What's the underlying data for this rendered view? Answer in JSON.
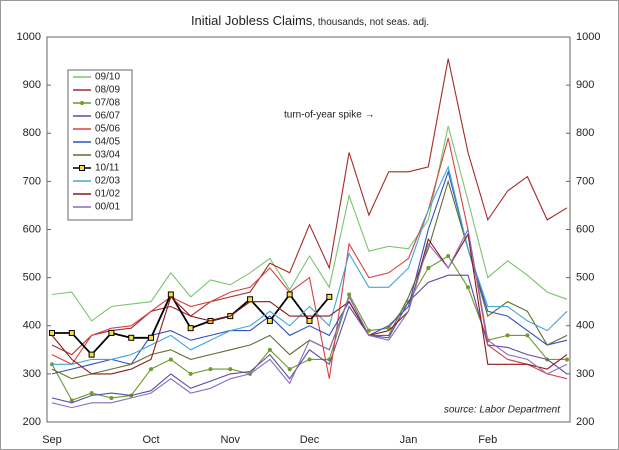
{
  "chart_data": {
    "type": "line",
    "title": "Initial Jobless Claims",
    "subtitle": ", thousands, not seas. adj.",
    "annotation": "turn-of-year spike →",
    "source": "source: Labor Department",
    "categories": [
      "Sep",
      null,
      null,
      null,
      null,
      "Oct",
      null,
      null,
      null,
      "Nov",
      null,
      null,
      null,
      "Dec",
      null,
      null,
      null,
      null,
      "Jan",
      null,
      null,
      null,
      "Feb",
      null,
      null,
      null,
      null
    ],
    "ylim": [
      200,
      1000
    ],
    "yticks": [
      200,
      300,
      400,
      500,
      600,
      700,
      800,
      900,
      1000
    ],
    "legend": "top-left",
    "series": [
      {
        "name": "09/10",
        "color": "#7cc46e",
        "values": [
          465,
          470,
          410,
          440,
          445,
          450,
          510,
          460,
          495,
          485,
          510,
          540,
          475,
          545,
          480,
          670,
          555,
          565,
          560,
          620,
          815,
          660,
          500,
          535,
          505,
          470,
          455
        ]
      },
      {
        "name": "08/09",
        "color": "#a52a2a",
        "values": [
          360,
          340,
          380,
          390,
          395,
          430,
          440,
          420,
          450,
          460,
          470,
          530,
          510,
          610,
          520,
          760,
          630,
          720,
          720,
          730,
          955,
          760,
          620,
          680,
          710,
          620,
          645
        ]
      },
      {
        "name": "07/08",
        "color": "#6e9a2e",
        "marker": "circle",
        "values": [
          320,
          245,
          260,
          250,
          255,
          310,
          330,
          300,
          310,
          310,
          300,
          350,
          310,
          330,
          330,
          465,
          390,
          395,
          450,
          520,
          545,
          480,
          370,
          380,
          380,
          330,
          330
        ]
      },
      {
        "name": "06/07",
        "color": "#5a4aa8",
        "values": [
          250,
          240,
          255,
          260,
          255,
          265,
          300,
          270,
          285,
          300,
          305,
          340,
          290,
          350,
          320,
          440,
          380,
          375,
          450,
          490,
          505,
          505,
          360,
          355,
          340,
          330,
          300
        ]
      },
      {
        "name": "05/06",
        "color": "#d84040",
        "values": [
          340,
          320,
          380,
          395,
          400,
          430,
          460,
          440,
          450,
          470,
          480,
          520,
          470,
          500,
          290,
          570,
          500,
          510,
          540,
          640,
          790,
          600,
          360,
          330,
          320,
          300,
          290
        ]
      },
      {
        "name": "04/05",
        "color": "#3050c0",
        "values": [
          300,
          310,
          320,
          330,
          320,
          380,
          390,
          370,
          380,
          390,
          390,
          420,
          380,
          400,
          380,
          450,
          380,
          400,
          440,
          600,
          720,
          560,
          430,
          420,
          390,
          360,
          370
        ]
      },
      {
        "name": "03/04",
        "color": "#5f6e2e",
        "values": [
          310,
          290,
          300,
          310,
          320,
          340,
          350,
          330,
          340,
          350,
          360,
          380,
          340,
          370,
          350,
          460,
          380,
          380,
          460,
          560,
          700,
          560,
          420,
          450,
          430,
          360,
          380
        ]
      },
      {
        "name": "10/11",
        "color": "#000000",
        "marker": "square",
        "values": [
          385,
          385,
          340,
          385,
          375,
          375,
          465,
          395,
          410,
          420,
          455,
          410,
          465,
          410,
          460,
          null,
          null,
          null,
          null,
          null,
          null,
          null,
          null,
          null,
          null,
          null,
          null
        ]
      },
      {
        "name": "02/03",
        "color": "#40a8d8",
        "values": [
          320,
          320,
          330,
          330,
          340,
          360,
          380,
          350,
          370,
          390,
          400,
          430,
          400,
          440,
          400,
          550,
          480,
          480,
          520,
          640,
          730,
          560,
          440,
          440,
          410,
          390,
          430
        ]
      },
      {
        "name": "01/02",
        "color": "#8b1a1a",
        "values": [
          380,
          330,
          300,
          300,
          310,
          330,
          460,
          420,
          410,
          420,
          450,
          450,
          420,
          420,
          420,
          450,
          380,
          390,
          430,
          580,
          520,
          590,
          320,
          320,
          320,
          310,
          340
        ]
      },
      {
        "name": "00/01",
        "color": "#8a6cc0",
        "values": [
          240,
          230,
          240,
          240,
          250,
          260,
          290,
          260,
          270,
          290,
          300,
          330,
          280,
          370,
          350,
          460,
          380,
          370,
          430,
          570,
          520,
          600,
          370,
          340,
          330,
          300,
          320
        ]
      }
    ]
  }
}
